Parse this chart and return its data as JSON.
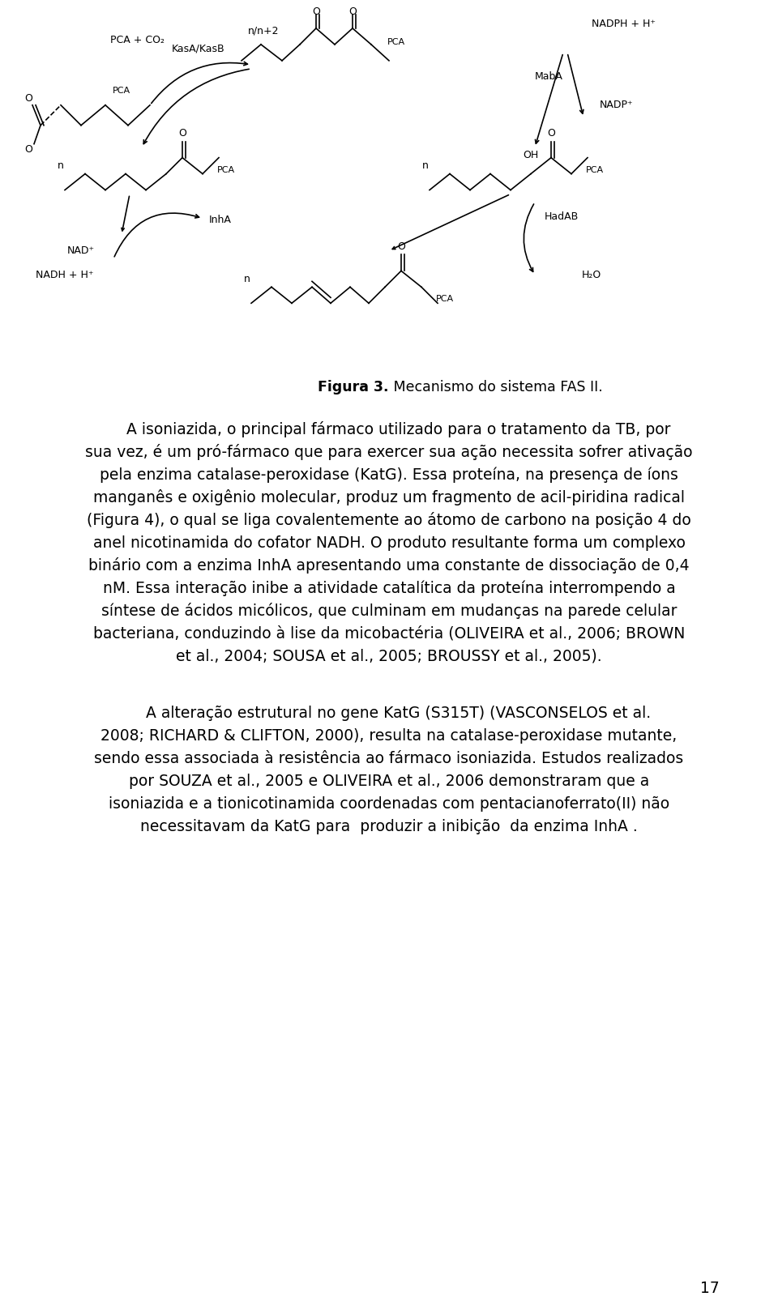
{
  "bg_color": "#ffffff",
  "text_color": "#000000",
  "figure_caption_bold": "Figura 3.",
  "figure_caption_rest": " Mecanismo do sistema FAS II.",
  "page_number": "17",
  "p1_line1": "A isoniazida, o principal fármaco utilizado para o tratamento da TB, por",
  "p1_line2": "sua vez, é um pró-fármaco que para exercer sua ação necessita sofrer ativação",
  "p1_line3": "pela enzima catalase-peroxidase (KatG). Essa proteína, na presença de íons",
  "p1_line4": "manganês e oxigênio molecular, produz um fragmento de acil-piridina radical",
  "p1_line5a": "(",
  "p1_line5b": "Figura 4",
  "p1_line5c": "), o qual se liga covalentemente ao átomo de carbono na posição 4 do",
  "p1_line6": "anel nicotinamida do cofator NADH. O produto resultante forma um complexo",
  "p1_line7": "binário com a enzima InhA apresentando uma constante de dissociação de 0,4",
  "p1_line8": "nM. Essa interação inibe a atividade catalítica da proteína interrompendo a",
  "p1_line9": "síntese de ácidos micólicos, que culminam em mudanças na parede celular",
  "p1_line10a": "bacteriana, conduzindo à lise da micobactéria (OLIVEIRA ",
  "p1_line10b": "et al.",
  "p1_line10c": ", 2006; BROWN",
  "p1_line11a": "et al.",
  "p1_line11b": ", 2004; SOUSA ",
  "p1_line11c": "et al.",
  "p1_line11d": ", 2005; BROUSSY ",
  "p1_line11e": "et al.",
  "p1_line11f": ", 2005).",
  "p2_indent": "    A alteração estrutural no gene ",
  "p2_katg": "KatG",
  "p2_rest1": " (S315T) (VASCONSELOS ",
  "p2_etal1": "et al.",
  "p2_rest2": ". 2008; RICHARD & CLIFTON, 2000), resulta na catalase-peroxidase mutante,",
  "p2_line3": "sendo essa associada à resistência ao fármaco isoniazida. Estudos realizados",
  "p2_line4a": "por SOUZA ",
  "p2_etal2": "et al.",
  "p2_line4b": ", 2005 e OLIVEIRA ",
  "p2_etal3": "et al.",
  "p2_line4c": ", 2006 demonstraram que a",
  "p2_line5": "isoniazida e a tionicotinamida coordenadas com pentacianoferrato(II) não",
  "p2_line6": "necessitavam da KatG para  produzir a inibição  da enzima InhA .",
  "fs": 13.5,
  "lh": 28
}
